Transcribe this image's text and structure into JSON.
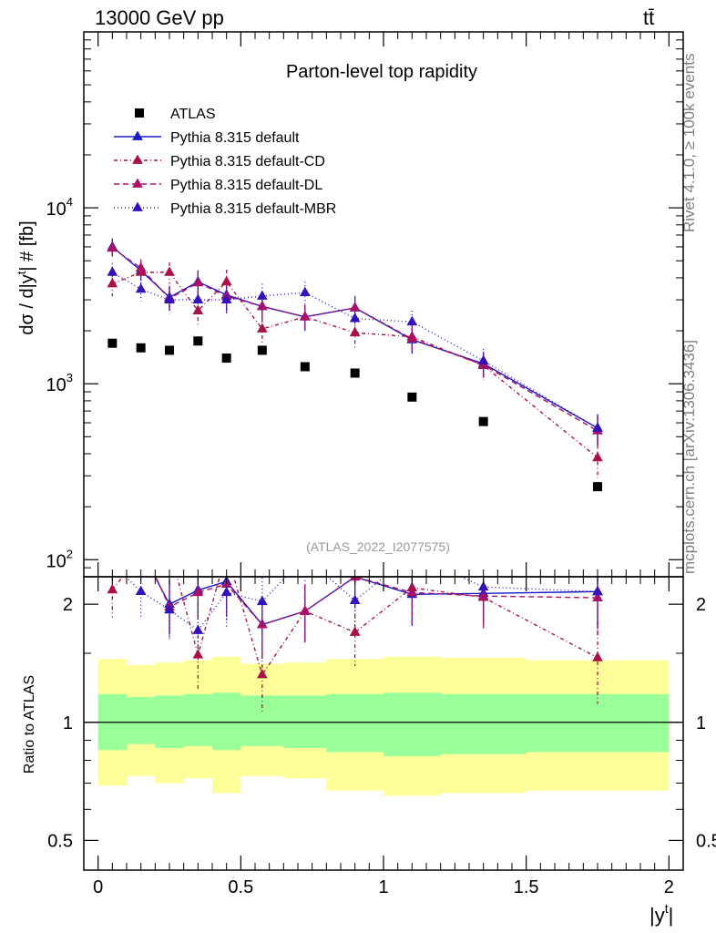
{
  "header": {
    "energy_label": "13000 GeV pp",
    "process_label": "tt̄"
  },
  "side_labels": {
    "rivet": "Rivet 4.1.0, ≥ 100k events",
    "source": "mcplots.cern.ch [arXiv:1306.3436]"
  },
  "chart_data": {
    "type": "line",
    "title": "Parton-level top rapidity",
    "reference_label": "(ATLAS_2022_I2077575)",
    "xlabel": "|y",
    "xlabel_sup": "t",
    "ylabel_main": "dσ / d|y",
    "ylabel_main_sup": "t",
    "ylabel_main_tail": "| # [fb]",
    "ylabel_ratio": "Ratio to ATLAS",
    "xlim": [
      -0.05,
      2.05
    ],
    "ylim_main": [
      80,
      100000
    ],
    "ylim_ratio": [
      0.42,
      2.35
    ],
    "x_ticks": [
      {
        "value": 0,
        "label": "0"
      },
      {
        "value": 0.5,
        "label": "0.5"
      },
      {
        "value": 1,
        "label": "1"
      },
      {
        "value": 1.5,
        "label": "1.5"
      },
      {
        "value": 2,
        "label": "2"
      }
    ],
    "main_y_ticks": [
      {
        "value": 100,
        "base": "10",
        "exp": "2"
      },
      {
        "value": 1000,
        "base": "10",
        "exp": "3"
      },
      {
        "value": 10000,
        "base": "10",
        "exp": "4"
      }
    ],
    "ratio_y_ticks": [
      {
        "value": 0.5,
        "label": "0.5"
      },
      {
        "value": 1,
        "label": "1"
      },
      {
        "value": 2,
        "label": "2"
      }
    ],
    "x": [
      0.05,
      0.15,
      0.25,
      0.35,
      0.45,
      0.575,
      0.725,
      0.9,
      1.1,
      1.35,
      1.75
    ],
    "bins": [
      0,
      0.1,
      0.2,
      0.3,
      0.4,
      0.5,
      0.65,
      0.8,
      1.0,
      1.2,
      1.5,
      2.0
    ],
    "data": {
      "name": "ATLAS",
      "values": [
        1700,
        1600,
        1550,
        1750,
        1400,
        1550,
        1250,
        1150,
        840,
        610,
        260
      ]
    },
    "uncertainty_bands": {
      "outer_low": [
        0.69,
        0.73,
        0.7,
        0.72,
        0.66,
        0.73,
        0.72,
        0.67,
        0.65,
        0.66,
        0.67,
        0.7
      ],
      "outer_high": [
        1.45,
        1.4,
        1.42,
        1.44,
        1.47,
        1.41,
        1.42,
        1.45,
        1.47,
        1.46,
        1.44,
        1.43
      ],
      "inner_low": [
        0.85,
        0.88,
        0.86,
        0.87,
        0.85,
        0.87,
        0.86,
        0.84,
        0.82,
        0.83,
        0.84,
        0.85
      ],
      "inner_high": [
        1.18,
        1.16,
        1.17,
        1.18,
        1.19,
        1.17,
        1.17,
        1.18,
        1.19,
        1.18,
        1.18,
        1.18
      ],
      "outer_color": "#ffff99",
      "inner_color": "#99ff99"
    },
    "series": [
      {
        "name": "Pythia 8.315 default",
        "color": "#1a1acc",
        "dash": "solid",
        "values": [
          6000,
          4400,
          3100,
          3800,
          3200,
          2750,
          2400,
          2700,
          1780,
          1300,
          560
        ],
        "err": [
          700,
          550,
          500,
          600,
          600,
          500,
          400,
          450,
          300,
          220,
          110
        ]
      },
      {
        "name": "Pythia 8.315 default-CD",
        "color": "#aa1144",
        "dash": "4,3,1,3",
        "values": [
          3700,
          4300,
          4300,
          2600,
          3800,
          2050,
          2400,
          1950,
          1850,
          1270,
          380
        ],
        "err": [
          550,
          600,
          600,
          500,
          650,
          400,
          400,
          350,
          300,
          220,
          90
        ]
      },
      {
        "name": "Pythia 8.315 default-DL",
        "color": "#aa1166",
        "dash": "6,4",
        "values": [
          5900,
          4550,
          3050,
          3750,
          3150,
          2750,
          2400,
          2700,
          1800,
          1280,
          540
        ],
        "err": [
          700,
          550,
          500,
          600,
          600,
          500,
          400,
          450,
          300,
          220,
          110
        ]
      },
      {
        "name": "Pythia 8.315 default-MBR",
        "color": "#3311bb",
        "dash": "1,3",
        "values": [
          4300,
          3450,
          3000,
          3000,
          3000,
          3150,
          3300,
          2350,
          2250,
          1350,
          560
        ],
        "err": [
          550,
          500,
          500,
          500,
          550,
          550,
          500,
          400,
          350,
          230,
          110
        ]
      }
    ]
  }
}
